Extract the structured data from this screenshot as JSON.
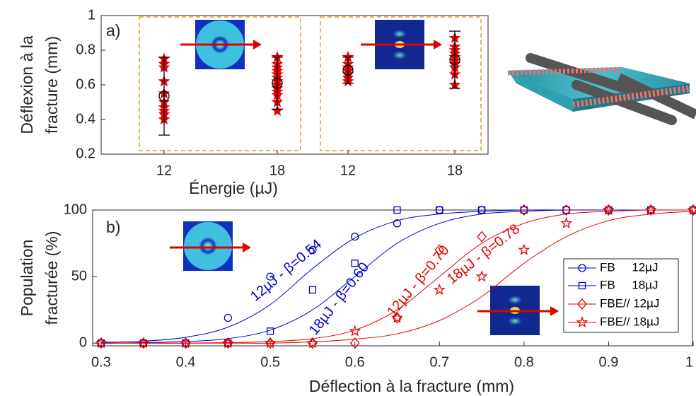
{
  "chart_data": [
    {
      "type": "scatter",
      "label": "a)",
      "ylabel": [
        "Déflexion à la",
        "fracture (mm)"
      ],
      "xlabel": "Énergie (µJ)",
      "categories": [
        "12",
        "18",
        "12",
        "18"
      ],
      "points": [
        [
          0.75,
          0.72,
          0.7,
          0.62,
          0.55,
          0.5,
          0.47,
          0.45,
          0.43,
          0.4
        ],
        [
          0.76,
          0.72,
          0.7,
          0.68,
          0.66,
          0.64,
          0.62,
          0.6,
          0.58,
          0.56,
          0.54,
          0.5,
          0.45
        ],
        [
          0.76,
          0.72,
          0.7,
          0.68,
          0.66,
          0.64,
          0.62
        ],
        [
          0.87,
          0.82,
          0.8,
          0.78,
          0.76,
          0.74,
          0.72,
          0.7,
          0.66,
          0.6
        ]
      ],
      "means": [
        0.535,
        0.61,
        0.685,
        0.745
      ],
      "errors": [
        0.225,
        0.15,
        0.075,
        0.165
      ],
      "color": "#e00000",
      "mean_color": "#000000",
      "ylim": [
        0.2,
        1
      ],
      "yticks": [
        0.2,
        0.4,
        0.6,
        0.8,
        1
      ]
    },
    {
      "type": "line",
      "label": "b)",
      "ylabel": [
        "Population",
        "fracturée (%)"
      ],
      "xlabel": "Déflection à la fracture (mm)",
      "x": [
        0.3,
        0.35,
        0.4,
        0.45,
        0.5,
        0.55,
        0.6,
        0.65,
        0.7,
        0.75,
        0.8,
        0.85,
        0.9,
        0.95,
        1
      ],
      "series": [
        {
          "name": "FB     12µJ",
          "color": "#0000d0",
          "marker": "circle",
          "values": [
            0,
            0,
            0,
            19,
            50,
            70,
            80,
            90,
            100,
            100,
            100,
            100,
            100,
            100,
            100
          ],
          "fit": [
            0.5,
            1.5,
            4.4,
            12,
            29,
            56,
            79,
            92,
            97,
            99,
            100,
            100,
            100,
            100,
            100
          ]
        },
        {
          "name": "FB     18µJ",
          "color": "#0000d0",
          "marker": "square",
          "values": [
            0,
            0,
            0,
            0,
            9,
            40,
            60,
            100,
            100,
            100,
            100,
            100,
            100,
            100,
            100
          ],
          "fit": [
            0,
            0.4,
            1.2,
            3.4,
            9.8,
            25,
            50,
            75,
            90,
            97,
            99,
            100,
            100,
            100,
            100
          ]
        },
        {
          "name": "FBE// 12µJ",
          "color": "#e00000",
          "marker": "diamond",
          "values": [
            0,
            0,
            0,
            0,
            0,
            0,
            0,
            19,
            70,
            80,
            100,
            100,
            100,
            100,
            100
          ],
          "fit": [
            0,
            0,
            0,
            0.4,
            1.2,
            3.4,
            9.8,
            25,
            50,
            75,
            90,
            97,
            99,
            100,
            100
          ]
        },
        {
          "name": "FBE// 18µJ",
          "color": "#e00000",
          "marker": "star",
          "values": [
            0,
            0,
            0,
            0,
            0,
            0,
            9,
            19,
            40,
            50,
            70,
            90,
            100,
            100,
            100
          ],
          "fit": [
            0,
            0,
            0,
            0,
            0,
            1,
            3,
            7,
            17,
            35,
            60,
            80,
            92,
            97,
            99
          ]
        }
      ],
      "annotations": [
        {
          "text": "12µJ - β=0.54",
          "color": "#0000d0"
        },
        {
          "text": "18µJ - β=0.60",
          "color": "#0000d0"
        },
        {
          "text": "12µJ - β=0.70",
          "color": "#e00000"
        },
        {
          "text": "18µJ - β=0.78",
          "color": "#e00000"
        }
      ],
      "xlim": [
        0.29,
        1
      ],
      "xticks": [
        0.3,
        0.4,
        0.5,
        0.6,
        0.7,
        0.8,
        0.9,
        1
      ],
      "ylim": [
        -2,
        100
      ],
      "yticks": [
        0,
        50,
        100
      ]
    }
  ]
}
